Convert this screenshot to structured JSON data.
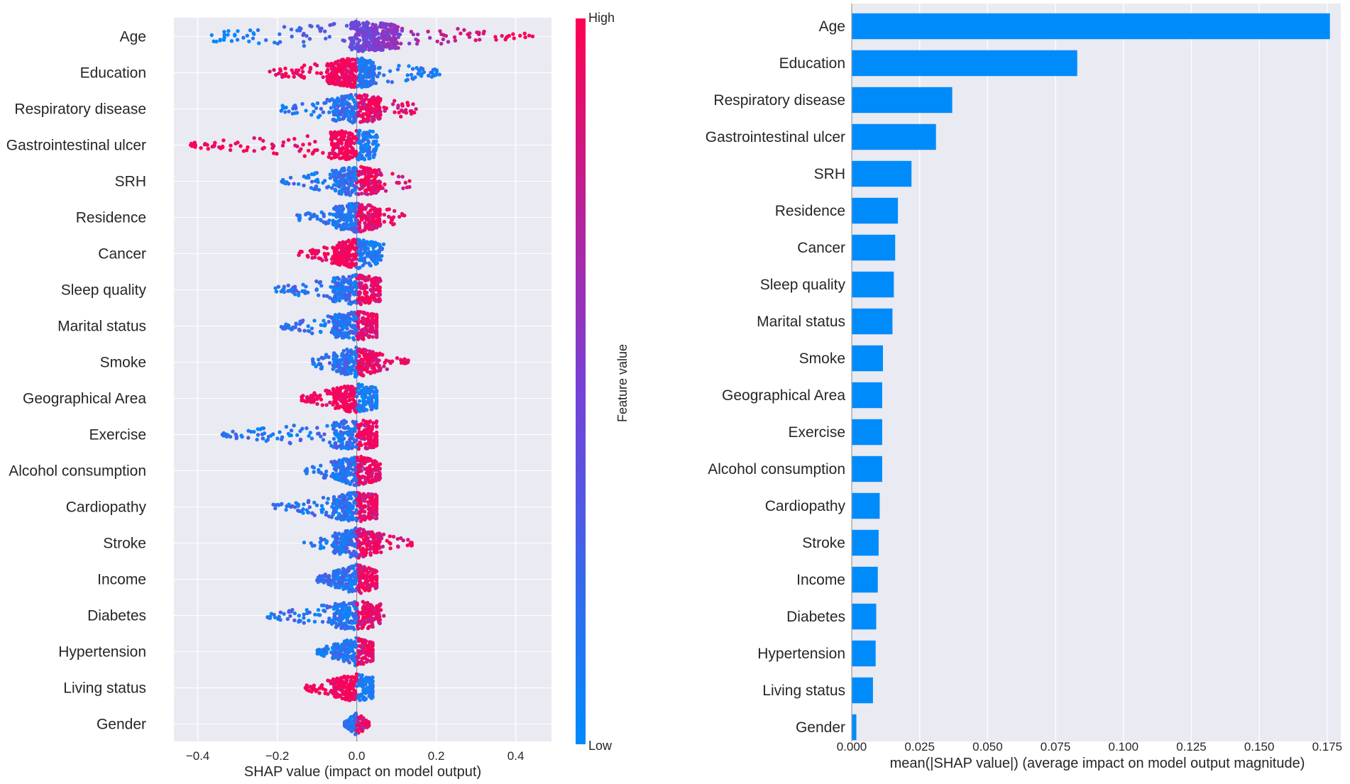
{
  "chart_data": [
    {
      "type": "scatter",
      "subtype": "shap-beeswarm",
      "title": "",
      "xlabel": "SHAP value (impact on model output)",
      "ylabel": "",
      "xlim": [
        -0.46,
        0.49
      ],
      "xticks": [
        -0.4,
        -0.2,
        0.0,
        0.2,
        0.4
      ],
      "xtick_labels": [
        "−0.4",
        "−0.2",
        "0.0",
        "0.2",
        "0.4"
      ],
      "grid": true,
      "colorbar": {
        "label": "Feature value",
        "high": "High",
        "low": "Low"
      },
      "colors": {
        "low": "#008bfb",
        "high": "#ff0052",
        "background": "#eaeaf2",
        "grid": "#ffffff"
      },
      "features": [
        {
          "name": "Age",
          "min": -0.37,
          "max": 0.45,
          "density": 1.0,
          "skew": 0.15
        },
        {
          "name": "Education",
          "min": -0.22,
          "max": 0.22,
          "density": 1.0,
          "skew": -0.05
        },
        {
          "name": "Respiratory disease",
          "min": -0.2,
          "max": 0.15,
          "density": 0.7,
          "skew": 0.0
        },
        {
          "name": "Gastrointestinal ulcer",
          "min": -0.42,
          "max": 0.06,
          "density": 0.6,
          "skew": -0.02
        },
        {
          "name": "SRH",
          "min": -0.19,
          "max": 0.14,
          "density": 0.6,
          "skew": 0.0
        },
        {
          "name": "Residence",
          "min": -0.15,
          "max": 0.13,
          "density": 0.6,
          "skew": 0.0
        },
        {
          "name": "Cancer",
          "min": -0.15,
          "max": 0.07,
          "density": 0.55,
          "skew": 0.0
        },
        {
          "name": "Sleep quality",
          "min": -0.21,
          "max": 0.06,
          "density": 0.55,
          "skew": 0.0
        },
        {
          "name": "Marital status",
          "min": -0.19,
          "max": 0.05,
          "density": 0.55,
          "skew": 0.0
        },
        {
          "name": "Smoke",
          "min": -0.12,
          "max": 0.13,
          "density": 0.5,
          "skew": 0.0
        },
        {
          "name": "Geographical Area",
          "min": -0.14,
          "max": 0.05,
          "density": 0.5,
          "skew": 0.0
        },
        {
          "name": "Exercise",
          "min": -0.34,
          "max": 0.05,
          "density": 0.5,
          "skew": 0.0
        },
        {
          "name": "Alcohol consumption",
          "min": -0.13,
          "max": 0.06,
          "density": 0.5,
          "skew": 0.0
        },
        {
          "name": "Cardiopathy",
          "min": -0.21,
          "max": 0.05,
          "density": 0.5,
          "skew": 0.0
        },
        {
          "name": "Stroke",
          "min": -0.14,
          "max": 0.14,
          "density": 0.5,
          "skew": 0.0
        },
        {
          "name": "Income",
          "min": -0.1,
          "max": 0.05,
          "density": 0.5,
          "skew": 0.0
        },
        {
          "name": "Diabetes",
          "min": -0.23,
          "max": 0.07,
          "density": 0.5,
          "skew": 0.0
        },
        {
          "name": "Hypertension",
          "min": -0.1,
          "max": 0.04,
          "density": 0.45,
          "skew": 0.0
        },
        {
          "name": "Living status",
          "min": -0.13,
          "max": 0.04,
          "density": 0.45,
          "skew": 0.0
        },
        {
          "name": "Gender",
          "min": -0.03,
          "max": 0.03,
          "density": 0.25,
          "skew": 0.0
        }
      ]
    },
    {
      "type": "bar",
      "orientation": "horizontal",
      "title": "",
      "xlabel": "mean(|SHAP value|) (average impact on model output magnitude)",
      "ylabel": "",
      "xlim": [
        0,
        0.18
      ],
      "xticks": [
        0,
        0.025,
        0.05,
        0.075,
        0.1,
        0.125,
        0.15,
        0.175
      ],
      "xtick_labels": [
        "0.000",
        "0.025",
        "0.050",
        "0.075",
        "0.100",
        "0.125",
        "0.150",
        "0.175"
      ],
      "grid": true,
      "bar_color": "#008bfb",
      "background": "#eaeaf2",
      "categories": [
        "Age",
        "Education",
        "Respiratory disease",
        "Gastrointestinal ulcer",
        "SRH",
        "Residence",
        "Cancer",
        "Sleep quality",
        "Marital status",
        "Smoke",
        "Geographical Area",
        "Exercise",
        "Alcohol consumption",
        "Cardiopathy",
        "Stroke",
        "Income",
        "Diabetes",
        "Hypertension",
        "Living status",
        "Gender"
      ],
      "values": [
        0.176,
        0.083,
        0.037,
        0.031,
        0.022,
        0.017,
        0.016,
        0.0155,
        0.015,
        0.0115,
        0.0112,
        0.0112,
        0.0112,
        0.0103,
        0.0099,
        0.0096,
        0.009,
        0.0088,
        0.0078,
        0.0017
      ]
    }
  ]
}
